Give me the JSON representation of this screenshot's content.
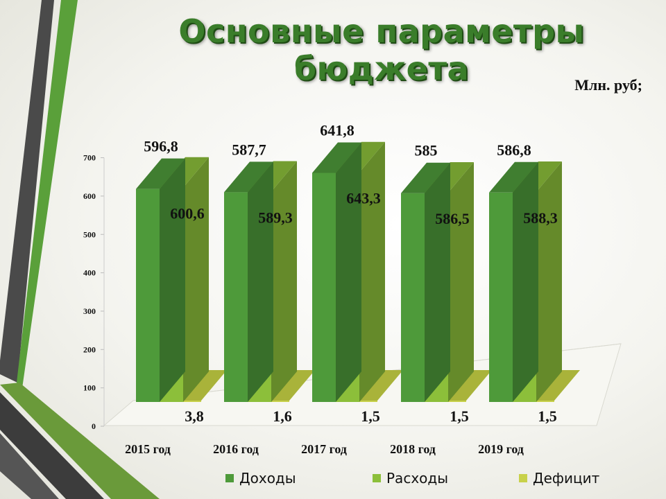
{
  "title": "Основные параметры бюджета",
  "unit_label": "Млн. руб;",
  "colors": {
    "accent_green": "#3a7d2a",
    "deco_dark": "#454545",
    "deco_green": "#5aa03a"
  },
  "chart_data": {
    "type": "bar",
    "categories": [
      "2015 год",
      "2016 год",
      "2017 год",
      "2018 год",
      "2019 год"
    ],
    "series": [
      {
        "name": "Доходы",
        "color": "#4e9a3a",
        "values": [
          596.8,
          587.7,
          641.8,
          585,
          586.8
        ],
        "labels": [
          "596,8",
          "587,7",
          "641,8",
          "585",
          "586,8"
        ]
      },
      {
        "name": "Расходы",
        "color": "#8cbf3a",
        "values": [
          600.6,
          589.3,
          643.3,
          586.5,
          588.3
        ],
        "labels": [
          "600,6",
          "589,3",
          "643,3",
          "586,5",
          "588,3"
        ]
      },
      {
        "name": "Дефицит",
        "color": "#c8d14a",
        "values": [
          3.8,
          1.6,
          1.5,
          1.5,
          1.5
        ],
        "labels": [
          "3,8",
          "1,6",
          "1,5",
          "1,5",
          "1,5"
        ]
      }
    ],
    "y_ticks": [
      "0",
      "100",
      "200",
      "300",
      "400",
      "500",
      "600",
      "700"
    ],
    "ylim": [
      0,
      700
    ],
    "grid": false,
    "legend_position": "bottom",
    "three_d": true
  }
}
